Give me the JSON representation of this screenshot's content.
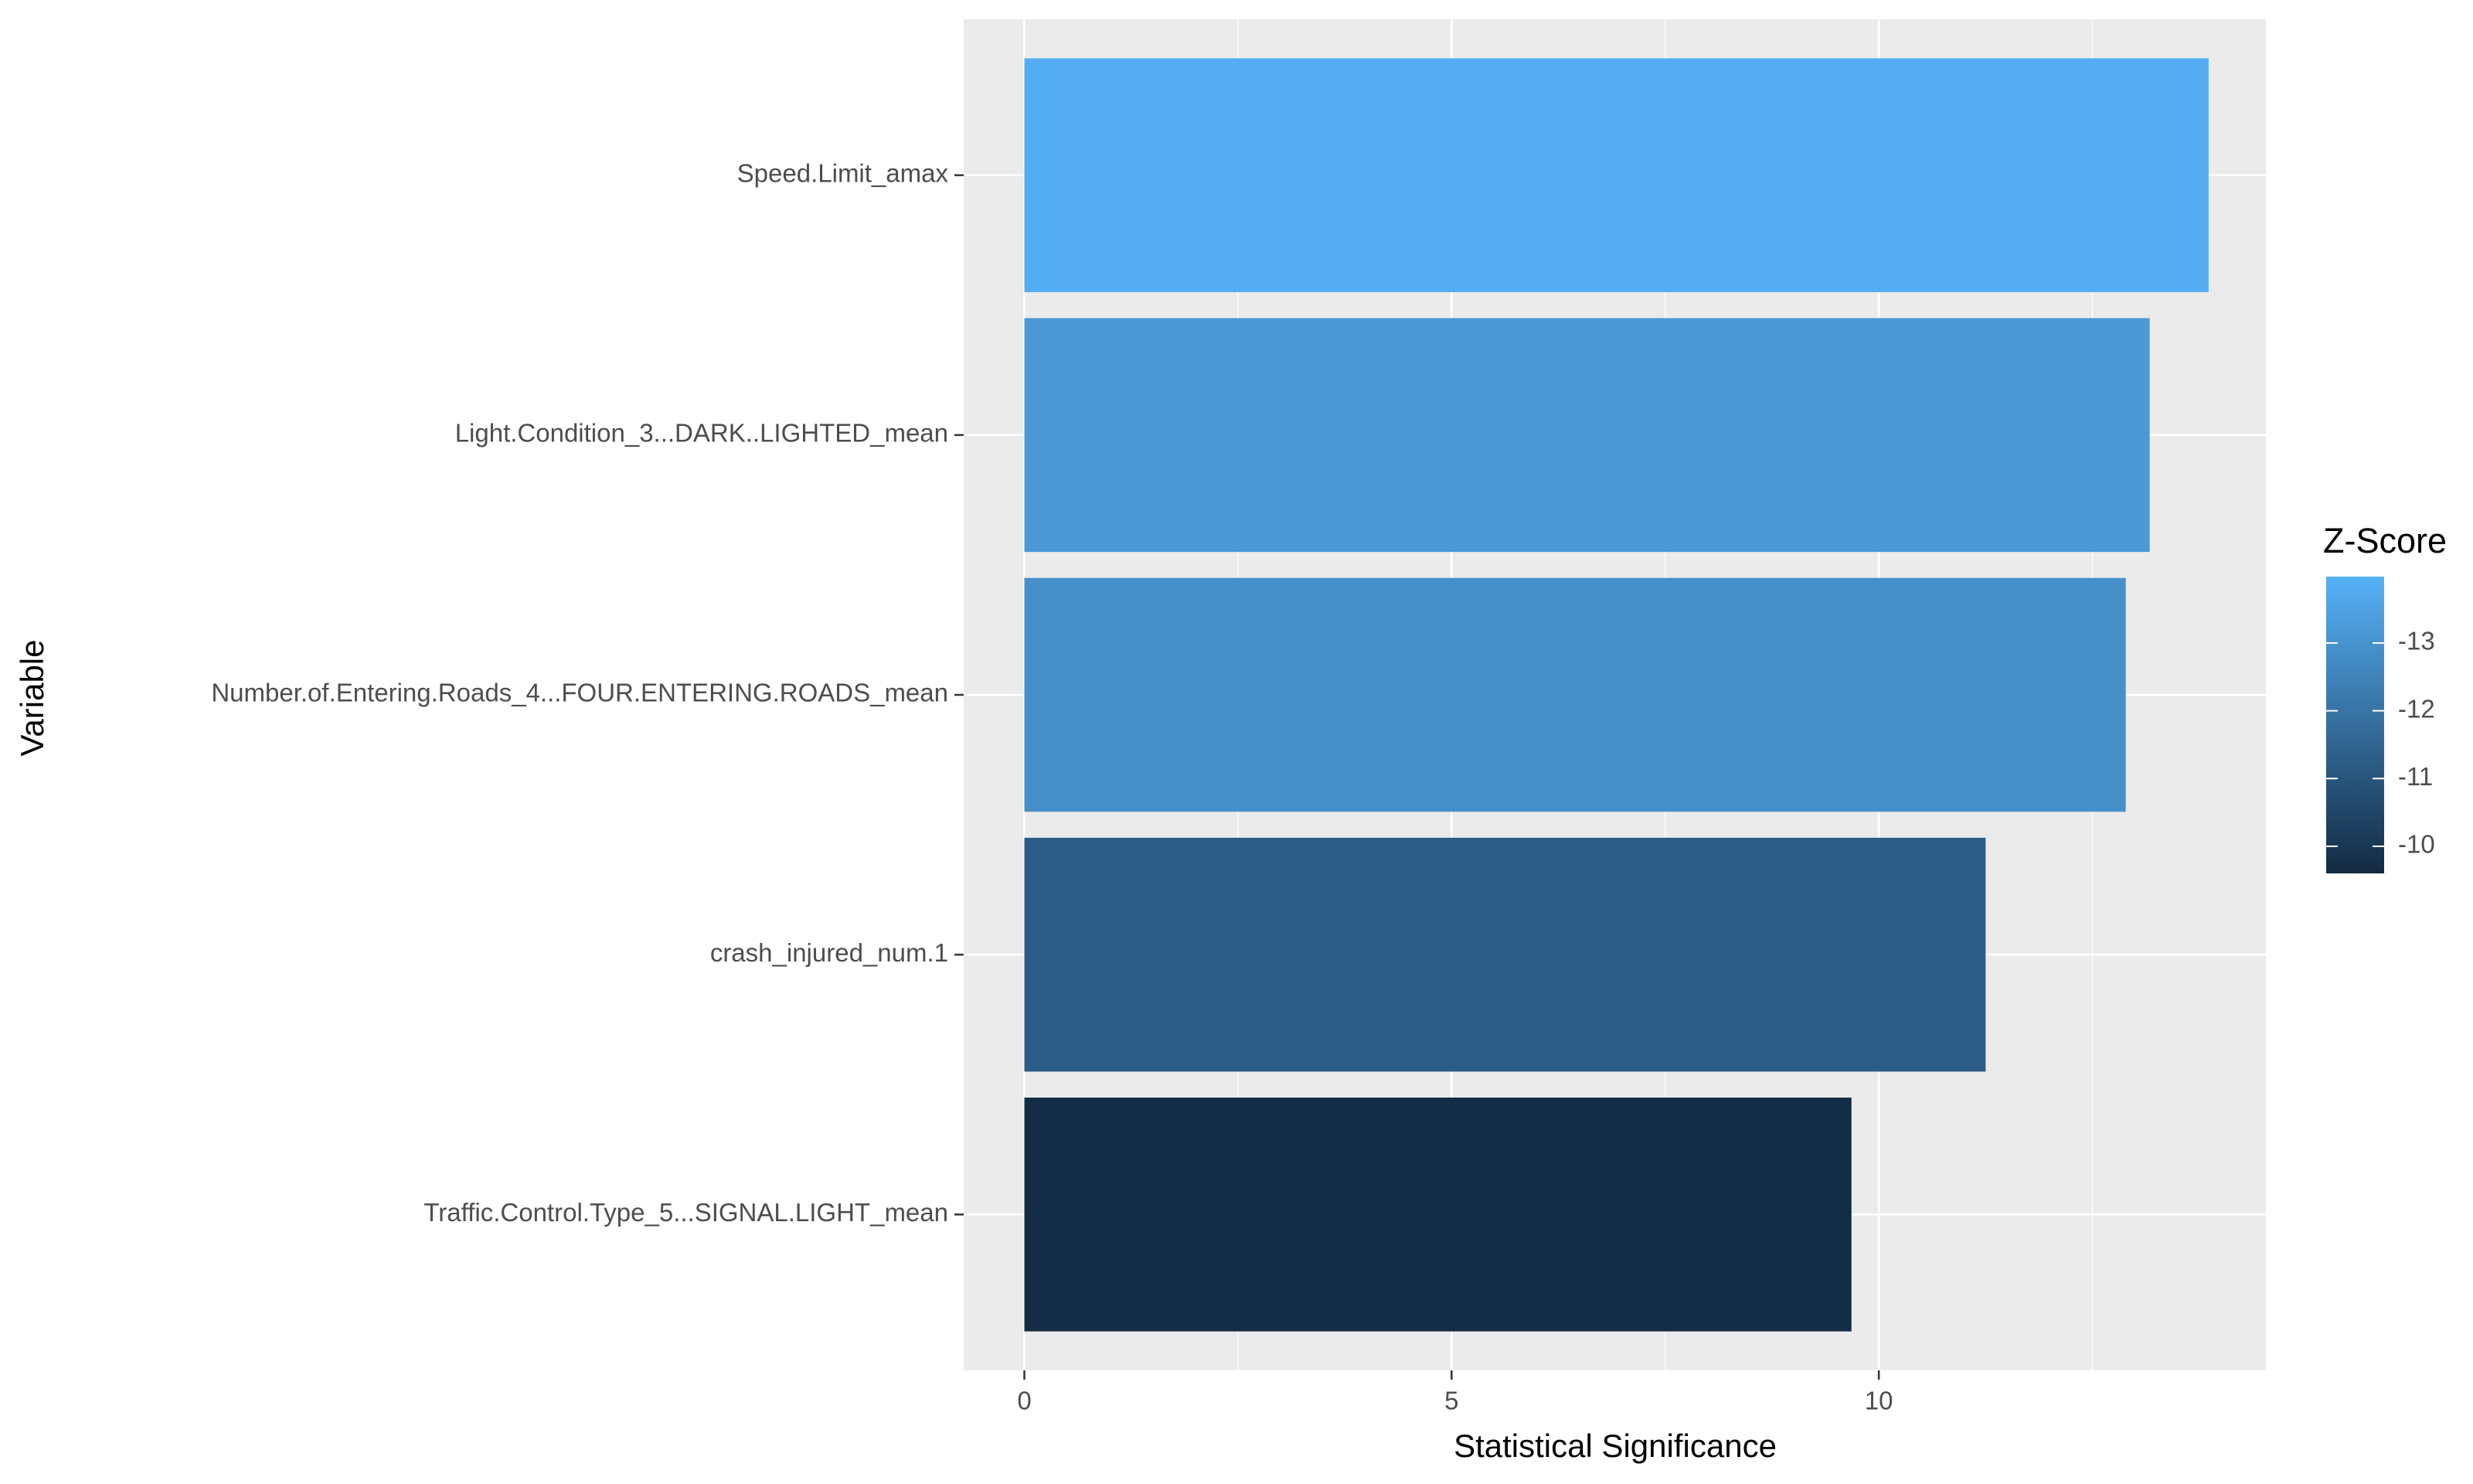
{
  "chart_data": {
    "type": "bar",
    "orientation": "horizontal",
    "xlabel": "Statistical Significance",
    "ylabel": "Variable",
    "categories": [
      "Speed.Limit_amax",
      "Light.Condition_3...DARK..LIGHTED_mean",
      "Number.of.Entering.Roads_4...FOUR.ENTERING.ROADS_mean",
      "crash_injured_num.1",
      "Traffic.Control.Type_5...SIGNAL.LIGHT_mean"
    ],
    "values": [
      13.86,
      13.17,
      12.89,
      11.25,
      9.68
    ],
    "color_values": [
      -13.86,
      -13.17,
      -12.89,
      -11.25,
      -9.68
    ],
    "xlim": [
      -0.71,
      14.53
    ],
    "xticks": [
      0,
      5,
      10
    ],
    "minor_xticks": [
      2.5,
      7.5,
      12.5
    ],
    "grid": true,
    "legend": {
      "title": "Z-Score",
      "position": "right",
      "lim": [
        -13.98,
        -9.6
      ],
      "ticks": [
        -13,
        -12,
        -11,
        -10
      ],
      "low_color": "#56B1F7",
      "high_color": "#132B43"
    }
  }
}
